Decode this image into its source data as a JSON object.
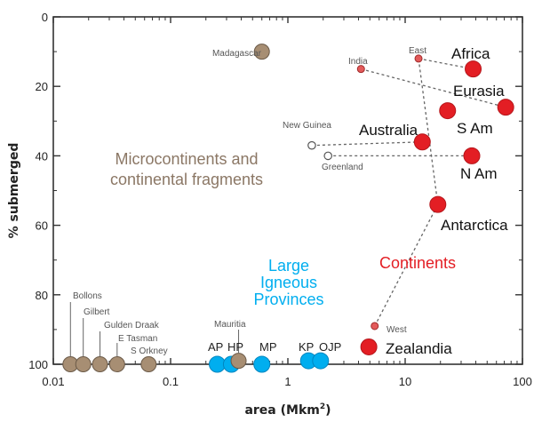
{
  "chart_data": {
    "type": "scatter",
    "xlabel_base": "area (Mkm",
    "xlabel_sup": "2",
    "xlabel_close": ")",
    "ylabel": "% submerged",
    "x_scale": "log",
    "xlim": [
      0.01,
      100
    ],
    "ylim": [
      0,
      100
    ],
    "x_ticks": [
      {
        "value": 0.01,
        "label": "0.01"
      },
      {
        "value": 0.1,
        "label": "0.1"
      },
      {
        "value": 1,
        "label": "1"
      },
      {
        "value": 10,
        "label": "10"
      },
      {
        "value": 100,
        "label": "100"
      }
    ],
    "y_ticks": [
      {
        "value": 0,
        "label": "0"
      },
      {
        "value": 20,
        "label": "20"
      },
      {
        "value": 40,
        "label": "40"
      },
      {
        "value": 60,
        "label": "60"
      },
      {
        "value": 80,
        "label": "80"
      },
      {
        "value": 100,
        "label": "100"
      }
    ],
    "groups": [
      {
        "label_lines": [
          "Microcontinents and",
          "continental fragments"
        ],
        "color": "#8b7765"
      },
      {
        "label_lines": [
          "Large",
          "Igneous",
          "Provinces"
        ],
        "color": "#00aeef"
      },
      {
        "label_lines": [
          "Continents"
        ],
        "color": "#e31e24"
      }
    ],
    "colors": {
      "micro": "#a78e73",
      "lip": "#00aeef",
      "continent": "#e31e24",
      "continent_small": "#e35a5a",
      "open": "#ffffff",
      "dashed": "#666666"
    },
    "points": [
      {
        "name": "Madagascar",
        "x": 0.6,
        "y": 10,
        "kind": "micro"
      },
      {
        "name": "Bollons",
        "x": 0.014,
        "y": 100,
        "kind": "micro"
      },
      {
        "name": "Gilbert",
        "x": 0.018,
        "y": 100,
        "kind": "micro"
      },
      {
        "name": "Gulden Draak",
        "x": 0.025,
        "y": 100,
        "kind": "micro"
      },
      {
        "name": "E Tasman",
        "x": 0.035,
        "y": 100,
        "kind": "micro"
      },
      {
        "name": "S Orkney",
        "x": 0.065,
        "y": 100,
        "kind": "micro"
      },
      {
        "name": "Mauritia",
        "x": 0.38,
        "y": 99,
        "kind": "micro"
      },
      {
        "name": "AP",
        "x": 0.25,
        "y": 100,
        "kind": "lip"
      },
      {
        "name": "HP",
        "x": 0.33,
        "y": 100,
        "kind": "lip"
      },
      {
        "name": "MP",
        "x": 0.6,
        "y": 100,
        "kind": "lip"
      },
      {
        "name": "KP",
        "x": 1.5,
        "y": 99,
        "kind": "lip"
      },
      {
        "name": "OJP",
        "x": 1.9,
        "y": 99,
        "kind": "lip"
      },
      {
        "name": "Africa",
        "x": 38,
        "y": 15,
        "kind": "continent"
      },
      {
        "name": "Eurasia",
        "x": 72,
        "y": 26,
        "kind": "continent"
      },
      {
        "name": "S Am",
        "x": 23,
        "y": 27,
        "kind": "continent"
      },
      {
        "name": "Australia",
        "x": 14,
        "y": 36,
        "kind": "continent"
      },
      {
        "name": "N Am",
        "x": 37,
        "y": 40,
        "kind": "continent"
      },
      {
        "name": "Antarctica",
        "x": 19,
        "y": 54,
        "kind": "continent"
      },
      {
        "name": "Zealandia",
        "x": 4.9,
        "y": 95,
        "kind": "continent"
      },
      {
        "name": "India",
        "x": 4.2,
        "y": 15,
        "kind": "continent_small"
      },
      {
        "name": "East",
        "x": 13,
        "y": 12,
        "kind": "continent_small"
      },
      {
        "name": "West",
        "x": 5.5,
        "y": 89,
        "kind": "continent_small"
      },
      {
        "name": "New Guinea",
        "x": 1.6,
        "y": 37,
        "kind": "open"
      },
      {
        "name": "Greenland",
        "x": 2.2,
        "y": 40,
        "kind": "open"
      }
    ],
    "connections": [
      [
        "India",
        "Eurasia"
      ],
      [
        "East",
        "Africa"
      ],
      [
        "New Guinea",
        "Australia"
      ],
      [
        "Greenland",
        "N Am"
      ],
      [
        "Antarctica",
        "East"
      ],
      [
        "West",
        "Antarctica"
      ]
    ],
    "labels": {
      "Madagascar": "Madagascar",
      "Bollons": "Bollons",
      "Gilbert": "Gilbert",
      "Gulden Draak": "Gulden Draak",
      "E Tasman": "E Tasman",
      "S Orkney": "S Orkney",
      "Mauritia": "Mauritia",
      "AP": "AP",
      "HP": "HP",
      "MP": "MP",
      "KP": "KP",
      "OJP": "OJP",
      "Africa": "Africa",
      "Eurasia": "Eurasia",
      "S Am": "S Am",
      "Australia": "Australia",
      "N Am": "N Am",
      "Antarctica": "Antarctica",
      "Zealandia": "Zealandia",
      "India": "India",
      "East": "East",
      "West": "West",
      "New Guinea": "New Guinea",
      "Greenland": "Greenland"
    }
  }
}
